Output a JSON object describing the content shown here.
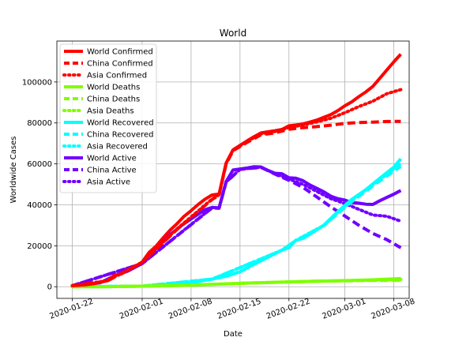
{
  "chart_data": {
    "type": "line",
    "title": "World",
    "xlabel": "Date",
    "ylabel": "Worldwide Cases",
    "x_tick_labels": [
      "2020-01-22",
      "2020-02-01",
      "2020-02-08",
      "2020-02-15",
      "2020-02-22",
      "2020-03-01",
      "2020-03-08"
    ],
    "y_tick_labels": [
      "0",
      "20000",
      "40000",
      "60000",
      "80000",
      "100000"
    ],
    "x_tick_days": [
      0,
      10,
      17,
      24,
      31,
      39,
      46
    ],
    "x_range_days": [
      -2.2,
      48.2
    ],
    "ylim": [
      -5700,
      120000
    ],
    "y_ticks": [
      0,
      20000,
      40000,
      60000,
      80000,
      100000
    ],
    "grid": true,
    "legend_position": "upper-left",
    "series": [
      {
        "name": "World Confirmed",
        "color": "#ff0000",
        "dash": "solid",
        "points": [
          [
            0,
            555
          ],
          [
            1,
            654
          ],
          [
            2,
            941
          ],
          [
            3,
            1434
          ],
          [
            4,
            2118
          ],
          [
            5,
            2927
          ],
          [
            6,
            5578
          ],
          [
            7,
            6166
          ],
          [
            8,
            8234
          ],
          [
            9,
            9927
          ],
          [
            10,
            12038
          ],
          [
            11,
            16787
          ],
          [
            12,
            19881
          ],
          [
            13,
            23892
          ],
          [
            14,
            27635
          ],
          [
            15,
            30817
          ],
          [
            16,
            34391
          ],
          [
            17,
            37120
          ],
          [
            18,
            40150
          ],
          [
            19,
            42762
          ],
          [
            20,
            44802
          ],
          [
            21,
            45221
          ],
          [
            22,
            60368
          ],
          [
            23,
            66885
          ],
          [
            24,
            69030
          ],
          [
            25,
            71224
          ],
          [
            26,
            73258
          ],
          [
            27,
            75136
          ],
          [
            28,
            75639
          ],
          [
            29,
            76197
          ],
          [
            30,
            76819
          ],
          [
            31,
            78572
          ],
          [
            32,
            78958
          ],
          [
            33,
            79561
          ],
          [
            34,
            80406
          ],
          [
            35,
            81388
          ],
          [
            36,
            82746
          ],
          [
            37,
            84112
          ],
          [
            38,
            86011
          ],
          [
            39,
            88369
          ],
          [
            40,
            90306
          ],
          [
            41,
            92840
          ],
          [
            42,
            95120
          ],
          [
            43,
            97886
          ],
          [
            44,
            101801
          ],
          [
            45,
            105847
          ],
          [
            46,
            109821
          ],
          [
            47,
            113590
          ]
        ]
      },
      {
        "name": "China Confirmed",
        "color": "#ff0000",
        "dash": "dashed",
        "points": [
          [
            0,
            548
          ],
          [
            5,
            2800
          ],
          [
            10,
            11800
          ],
          [
            15,
            28000
          ],
          [
            20,
            42600
          ],
          [
            21,
            44700
          ],
          [
            22,
            59900
          ],
          [
            23,
            66400
          ],
          [
            25,
            70500
          ],
          [
            27,
            74200
          ],
          [
            29,
            75100
          ],
          [
            31,
            76900
          ],
          [
            33,
            77700
          ],
          [
            35,
            78200
          ],
          [
            37,
            78900
          ],
          [
            39,
            79800
          ],
          [
            41,
            80200
          ],
          [
            43,
            80400
          ],
          [
            45,
            80700
          ],
          [
            47,
            80800
          ]
        ]
      },
      {
        "name": "Asia Confirmed",
        "color": "#ff0000",
        "dash": "dotted",
        "points": [
          [
            0,
            552
          ],
          [
            5,
            2890
          ],
          [
            10,
            11950
          ],
          [
            15,
            28300
          ],
          [
            20,
            42800
          ],
          [
            21,
            44900
          ],
          [
            22,
            60100
          ],
          [
            23,
            66700
          ],
          [
            25,
            70900
          ],
          [
            27,
            74700
          ],
          [
            29,
            75800
          ],
          [
            31,
            77700
          ],
          [
            33,
            79000
          ],
          [
            35,
            80500
          ],
          [
            37,
            82300
          ],
          [
            39,
            85000
          ],
          [
            41,
            88000
          ],
          [
            43,
            90600
          ],
          [
            45,
            94300
          ],
          [
            47,
            96300
          ]
        ]
      },
      {
        "name": "World Deaths",
        "color": "#7fff00",
        "dash": "solid",
        "points": [
          [
            0,
            17
          ],
          [
            5,
            56
          ],
          [
            10,
            259
          ],
          [
            15,
            638
          ],
          [
            20,
            1113
          ],
          [
            25,
            1770
          ],
          [
            30,
            2251
          ],
          [
            35,
            2708
          ],
          [
            40,
            3085
          ],
          [
            43,
            3348
          ],
          [
            46,
            3808
          ],
          [
            47,
            3996
          ]
        ]
      },
      {
        "name": "China Deaths",
        "color": "#7fff00",
        "dash": "dashed",
        "points": [
          [
            0,
            17
          ],
          [
            5,
            56
          ],
          [
            10,
            259
          ],
          [
            15,
            635
          ],
          [
            20,
            1107
          ],
          [
            25,
            1765
          ],
          [
            30,
            2236
          ],
          [
            35,
            2664
          ],
          [
            40,
            2946
          ],
          [
            43,
            3042
          ],
          [
            46,
            3097
          ],
          [
            47,
            3119
          ]
        ]
      },
      {
        "name": "Asia Deaths",
        "color": "#7fff00",
        "dash": "dotted",
        "points": [
          [
            0,
            17
          ],
          [
            5,
            56
          ],
          [
            10,
            259
          ],
          [
            15,
            637
          ],
          [
            20,
            1110
          ],
          [
            25,
            1768
          ],
          [
            30,
            2246
          ],
          [
            35,
            2700
          ],
          [
            40,
            3030
          ],
          [
            43,
            3180
          ],
          [
            46,
            3420
          ],
          [
            47,
            3560
          ]
        ]
      },
      {
        "name": "World Recovered",
        "color": "#00ffff",
        "dash": "solid",
        "points": [
          [
            0,
            28
          ],
          [
            5,
            52
          ],
          [
            10,
            284
          ],
          [
            12,
            510
          ],
          [
            14,
            852
          ],
          [
            16,
            1500
          ],
          [
            18,
            2500
          ],
          [
            20,
            3700
          ],
          [
            22,
            5100
          ],
          [
            24,
            7300
          ],
          [
            26,
            10900
          ],
          [
            28,
            14400
          ],
          [
            30,
            17900
          ],
          [
            31,
            19000
          ],
          [
            32,
            22700
          ],
          [
            33,
            23600
          ],
          [
            34,
            25600
          ],
          [
            36,
            30100
          ],
          [
            38,
            36700
          ],
          [
            40,
            42700
          ],
          [
            42,
            47400
          ],
          [
            44,
            53000
          ],
          [
            46,
            58400
          ],
          [
            47,
            62500
          ]
        ]
      },
      {
        "name": "China Recovered",
        "color": "#00ffff",
        "dash": "dashed",
        "points": [
          [
            0,
            28
          ],
          [
            10,
            280
          ],
          [
            20,
            3690
          ],
          [
            30,
            17800
          ],
          [
            32,
            22600
          ],
          [
            36,
            29900
          ],
          [
            40,
            41600
          ],
          [
            44,
            51700
          ],
          [
            47,
            58800
          ]
        ]
      },
      {
        "name": "Asia Recovered",
        "color": "#00ffff",
        "dash": "dotted",
        "points": [
          [
            0,
            28
          ],
          [
            10,
            283
          ],
          [
            20,
            3695
          ],
          [
            30,
            17850
          ],
          [
            32,
            22650
          ],
          [
            36,
            30000
          ],
          [
            40,
            42200
          ],
          [
            44,
            52300
          ],
          [
            47,
            60100
          ]
        ]
      },
      {
        "name": "World Active",
        "color": "#7000ff",
        "dash": "solid",
        "points": [
          [
            0,
            510
          ],
          [
            2,
            860
          ],
          [
            4,
            1920
          ],
          [
            6,
            5230
          ],
          [
            8,
            7700
          ],
          [
            10,
            11300
          ],
          [
            12,
            18800
          ],
          [
            14,
            25500
          ],
          [
            16,
            30800
          ],
          [
            18,
            35400
          ],
          [
            19,
            37600
          ],
          [
            20,
            38700
          ],
          [
            21,
            38500
          ],
          [
            22,
            51300
          ],
          [
            23,
            57000
          ],
          [
            24,
            57500
          ],
          [
            25,
            58000
          ],
          [
            26,
            58600
          ],
          [
            27,
            58500
          ],
          [
            28,
            56800
          ],
          [
            29,
            55400
          ],
          [
            30,
            55200
          ],
          [
            31,
            53200
          ],
          [
            32,
            53000
          ],
          [
            33,
            51800
          ],
          [
            34,
            49700
          ],
          [
            35,
            48000
          ],
          [
            36,
            46300
          ],
          [
            37,
            44200
          ],
          [
            38,
            43000
          ],
          [
            39,
            42300
          ],
          [
            40,
            41100
          ],
          [
            41,
            40800
          ],
          [
            42,
            40300
          ],
          [
            43,
            40200
          ],
          [
            44,
            42000
          ],
          [
            45,
            43600
          ],
          [
            46,
            45200
          ],
          [
            47,
            47000
          ]
        ]
      },
      {
        "name": "China Active",
        "color": "#7000ff",
        "dash": "dashed",
        "points": [
          [
            0,
            503
          ],
          [
            10,
            11300
          ],
          [
            20,
            38500
          ],
          [
            21,
            38300
          ],
          [
            22,
            51000
          ],
          [
            24,
            57300
          ],
          [
            27,
            58300
          ],
          [
            29,
            55000
          ],
          [
            31,
            52000
          ],
          [
            33,
            48500
          ],
          [
            35,
            43800
          ],
          [
            37,
            39000
          ],
          [
            39,
            34500
          ],
          [
            41,
            30000
          ],
          [
            43,
            26000
          ],
          [
            45,
            23000
          ],
          [
            47,
            19000
          ]
        ]
      },
      {
        "name": "Asia Active",
        "color": "#7000ff",
        "dash": "dotted",
        "points": [
          [
            0,
            507
          ],
          [
            10,
            11300
          ],
          [
            20,
            38600
          ],
          [
            21,
            38400
          ],
          [
            22,
            51100
          ],
          [
            24,
            57400
          ],
          [
            27,
            58400
          ],
          [
            29,
            55200
          ],
          [
            31,
            52600
          ],
          [
            33,
            50000
          ],
          [
            35,
            46500
          ],
          [
            37,
            43000
          ],
          [
            39,
            40600
          ],
          [
            41,
            37800
          ],
          [
            43,
            35000
          ],
          [
            45,
            34400
          ],
          [
            47,
            32000
          ]
        ]
      }
    ]
  }
}
